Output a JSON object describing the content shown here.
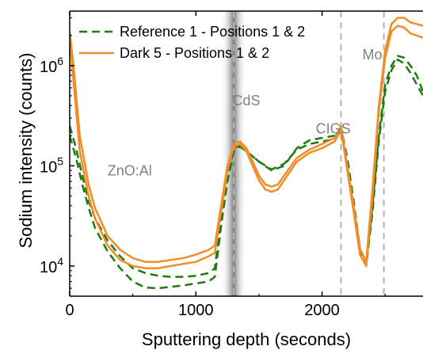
{
  "chart_data": {
    "type": "line",
    "xlabel": "Sputtering depth (seconds)",
    "ylabel": "Sodium intensity (counts)",
    "xlim": [
      0,
      2800
    ],
    "ylim": [
      5000,
      3500000
    ],
    "yscale": "log",
    "x_ticks": [
      0,
      1000,
      2000
    ],
    "x_tick_labels": [
      "0",
      "1000",
      "2000"
    ],
    "y_ticks": [
      10000,
      100000,
      1000000
    ],
    "y_tick_labels": [
      {
        "base": "10",
        "exp": "4"
      },
      {
        "base": "10",
        "exp": "5"
      },
      {
        "base": "10",
        "exp": "6"
      }
    ],
    "grid": false,
    "legend_position": "top-left",
    "legend": [
      {
        "label": "Reference 1 - Positions 1 & 2",
        "color": "#1f7a0f",
        "style": "dashed"
      },
      {
        "label": "Dark 5 - Positions 1 & 2",
        "color": "#f28c28",
        "style": "solid"
      }
    ],
    "regions": [
      {
        "label": "ZnO:Al",
        "x": 300,
        "y": 80000
      },
      {
        "label": "CdS",
        "x": 1290,
        "y": 400000
      },
      {
        "label": "CIGS",
        "x": 1950,
        "y": 210000
      },
      {
        "label": "Mo",
        "x": 2320,
        "y": 1150000
      }
    ],
    "boundaries": [
      1300,
      2150,
      2490
    ],
    "cds_band": [
      1200,
      1400
    ],
    "series": [
      {
        "name": "Reference 1 - Positions 1 & 2",
        "color": "#1f7a0f",
        "style": "dashed",
        "points": [
          [
            0,
            250000
          ],
          [
            50,
            150000
          ],
          [
            100,
            80000
          ],
          [
            150,
            45000
          ],
          [
            200,
            30000
          ],
          [
            300,
            18000
          ],
          [
            400,
            12500
          ],
          [
            500,
            9500
          ],
          [
            600,
            8500
          ],
          [
            700,
            8000
          ],
          [
            800,
            7800
          ],
          [
            900,
            7800
          ],
          [
            1000,
            8000
          ],
          [
            1100,
            8500
          ],
          [
            1150,
            9500
          ],
          [
            1200,
            30000
          ],
          [
            1250,
            80000
          ],
          [
            1300,
            150000
          ],
          [
            1350,
            160000
          ],
          [
            1400,
            140000
          ],
          [
            1500,
            110000
          ],
          [
            1600,
            90000
          ],
          [
            1700,
            100000
          ],
          [
            1800,
            150000
          ],
          [
            1900,
            180000
          ],
          [
            2000,
            190000
          ],
          [
            2100,
            200000
          ],
          [
            2150,
            240000
          ],
          [
            2200,
            120000
          ],
          [
            2250,
            45000
          ],
          [
            2300,
            15000
          ],
          [
            2350,
            10500
          ],
          [
            2400,
            40000
          ],
          [
            2450,
            200000
          ],
          [
            2500,
            650000
          ],
          [
            2550,
            1000000
          ],
          [
            2600,
            1250000
          ],
          [
            2650,
            1200000
          ],
          [
            2700,
            1000000
          ],
          [
            2750,
            800000
          ],
          [
            2800,
            550000
          ]
        ]
      },
      {
        "name": "Reference 1 - Positions 1 & 2",
        "color": "#1f7a0f",
        "style": "dashed",
        "points": [
          [
            0,
            200000
          ],
          [
            50,
            120000
          ],
          [
            100,
            65000
          ],
          [
            150,
            38000
          ],
          [
            200,
            24000
          ],
          [
            300,
            14000
          ],
          [
            400,
            9500
          ],
          [
            500,
            7000
          ],
          [
            600,
            6100
          ],
          [
            700,
            6000
          ],
          [
            800,
            6200
          ],
          [
            900,
            6400
          ],
          [
            1000,
            6700
          ],
          [
            1100,
            7000
          ],
          [
            1150,
            7800
          ],
          [
            1200,
            25000
          ],
          [
            1250,
            70000
          ],
          [
            1300,
            140000
          ],
          [
            1350,
            155000
          ],
          [
            1400,
            140000
          ],
          [
            1500,
            110000
          ],
          [
            1600,
            92000
          ],
          [
            1700,
            105000
          ],
          [
            1800,
            145000
          ],
          [
            1900,
            165000
          ],
          [
            2000,
            175000
          ],
          [
            2100,
            185000
          ],
          [
            2150,
            220000
          ],
          [
            2200,
            100000
          ],
          [
            2250,
            40000
          ],
          [
            2300,
            14000
          ],
          [
            2350,
            10000
          ],
          [
            2400,
            35000
          ],
          [
            2450,
            180000
          ],
          [
            2500,
            550000
          ],
          [
            2550,
            900000
          ],
          [
            2600,
            1150000
          ],
          [
            2650,
            1050000
          ],
          [
            2700,
            850000
          ],
          [
            2750,
            650000
          ],
          [
            2800,
            500000
          ]
        ]
      },
      {
        "name": "Dark 5 - Positions 1 & 2",
        "color": "#f28c28",
        "style": "solid",
        "points": [
          [
            0,
            2200000
          ],
          [
            30,
            1000000
          ],
          [
            80,
            200000
          ],
          [
            150,
            65000
          ],
          [
            200,
            38000
          ],
          [
            300,
            20000
          ],
          [
            400,
            14500
          ],
          [
            500,
            12000
          ],
          [
            600,
            11000
          ],
          [
            700,
            11000
          ],
          [
            800,
            11500
          ],
          [
            900,
            12000
          ],
          [
            1000,
            13000
          ],
          [
            1100,
            14500
          ],
          [
            1150,
            16000
          ],
          [
            1200,
            40000
          ],
          [
            1250,
            100000
          ],
          [
            1300,
            165000
          ],
          [
            1350,
            175000
          ],
          [
            1400,
            150000
          ],
          [
            1450,
            110000
          ],
          [
            1500,
            80000
          ],
          [
            1550,
            65000
          ],
          [
            1600,
            62000
          ],
          [
            1650,
            65000
          ],
          [
            1700,
            80000
          ],
          [
            1800,
            120000
          ],
          [
            1900,
            145000
          ],
          [
            2000,
            165000
          ],
          [
            2100,
            190000
          ],
          [
            2150,
            250000
          ],
          [
            2200,
            100000
          ],
          [
            2250,
            40000
          ],
          [
            2300,
            15000
          ],
          [
            2350,
            11000
          ],
          [
            2400,
            60000
          ],
          [
            2450,
            400000
          ],
          [
            2500,
            1400000
          ],
          [
            2550,
            2600000
          ],
          [
            2600,
            3000000
          ],
          [
            2650,
            3000000
          ],
          [
            2700,
            2700000
          ],
          [
            2800,
            2500000
          ]
        ]
      },
      {
        "name": "Dark 5 - Positions 1 & 2",
        "color": "#f28c28",
        "style": "solid",
        "points": [
          [
            0,
            1800000
          ],
          [
            30,
            700000
          ],
          [
            80,
            140000
          ],
          [
            150,
            50000
          ],
          [
            200,
            30000
          ],
          [
            300,
            16000
          ],
          [
            400,
            11500
          ],
          [
            500,
            10000
          ],
          [
            600,
            9500
          ],
          [
            700,
            9500
          ],
          [
            800,
            10000
          ],
          [
            900,
            10500
          ],
          [
            1000,
            11000
          ],
          [
            1100,
            12500
          ],
          [
            1150,
            13500
          ],
          [
            1200,
            35000
          ],
          [
            1250,
            90000
          ],
          [
            1300,
            155000
          ],
          [
            1350,
            165000
          ],
          [
            1400,
            140000
          ],
          [
            1450,
            100000
          ],
          [
            1500,
            72000
          ],
          [
            1550,
            58000
          ],
          [
            1600,
            55000
          ],
          [
            1650,
            58000
          ],
          [
            1700,
            72000
          ],
          [
            1800,
            110000
          ],
          [
            1900,
            135000
          ],
          [
            2000,
            150000
          ],
          [
            2100,
            175000
          ],
          [
            2150,
            230000
          ],
          [
            2200,
            90000
          ],
          [
            2250,
            35000
          ],
          [
            2300,
            13000
          ],
          [
            2350,
            10000
          ],
          [
            2400,
            50000
          ],
          [
            2450,
            350000
          ],
          [
            2500,
            1200000
          ],
          [
            2550,
            2200000
          ],
          [
            2600,
            2500000
          ],
          [
            2650,
            2400000
          ],
          [
            2700,
            2100000
          ],
          [
            2800,
            1900000
          ]
        ]
      }
    ]
  }
}
